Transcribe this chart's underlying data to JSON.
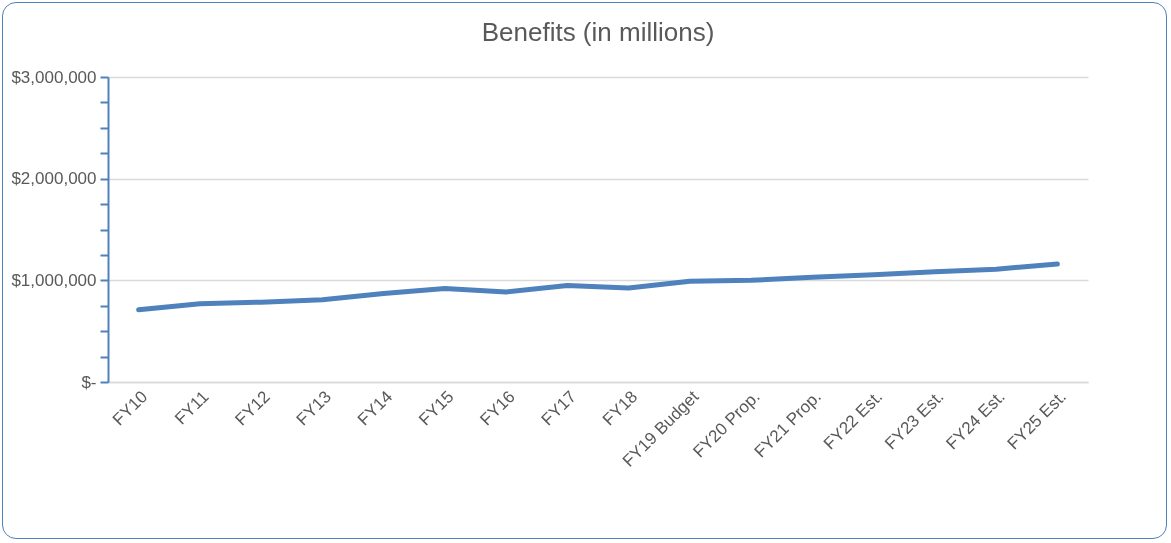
{
  "chart_data": {
    "type": "line",
    "title": "Benefits (in millions)",
    "categories": [
      "FY10",
      "FY11",
      "FY12",
      "FY13",
      "FY14",
      "FY15",
      "FY16",
      "FY17",
      "FY18",
      "FY19 Budget",
      "FY20 Prop.",
      "FY21 Prop.",
      "FY22 Est.",
      "FY23 Est.",
      "FY24 Est.",
      "FY25 Est."
    ],
    "series": [
      {
        "color": "#4f81bd",
        "values": [
          710000,
          770000,
          785000,
          810000,
          870000,
          920000,
          885000,
          950000,
          925000,
          990000,
          1000000,
          1030000,
          1055000,
          1085000,
          1110000,
          1160000
        ]
      }
    ],
    "ylim": [
      0,
      3000000
    ],
    "yticks": [
      {
        "value": 0,
        "label": "$-"
      },
      {
        "value": 250000,
        "label": null
      },
      {
        "value": 500000,
        "label": null
      },
      {
        "value": 750000,
        "label": null
      },
      {
        "value": 1000000,
        "label": "$1,000,000"
      },
      {
        "value": 1250000,
        "label": null
      },
      {
        "value": 1500000,
        "label": null
      },
      {
        "value": 1750000,
        "label": null
      },
      {
        "value": 2000000,
        "label": "$2,000,000"
      },
      {
        "value": 2250000,
        "label": null
      },
      {
        "value": 2500000,
        "label": null
      },
      {
        "value": 2750000,
        "label": null
      },
      {
        "value": 3000000,
        "label": "$3,000,000"
      }
    ],
    "grid": "y",
    "legend": false,
    "marker": "none",
    "line_style": "solid"
  }
}
